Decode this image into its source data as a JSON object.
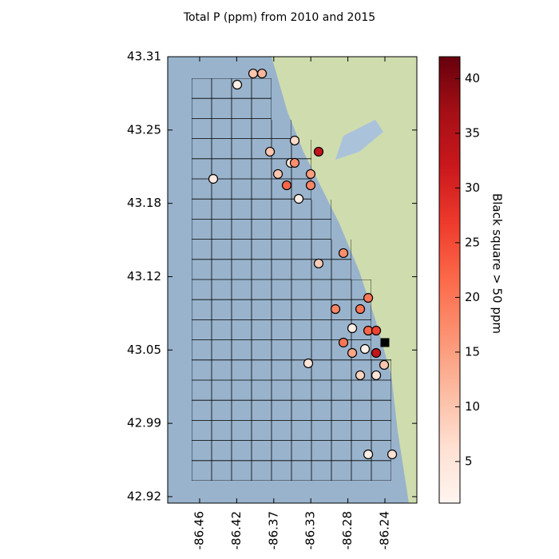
{
  "chart_data": {
    "type": "scatter",
    "title": "Total P (ppm) from 2010 and 2015",
    "colorbar_label": "Black square > 50 ppm",
    "x": [
      -86.3975,
      -86.3868,
      -86.4169,
      -86.318,
      -86.3771,
      -86.3471,
      -86.3519,
      -86.3471,
      -86.3674,
      -86.3277,
      -86.3568,
      -86.3277,
      -86.446,
      -86.3422,
      -86.2879,
      -86.318,
      -86.2578,
      -86.2976,
      -86.2675,
      -86.2772,
      -86.2578,
      -86.2481,
      -86.2879,
      -86.2617,
      -86.2772,
      -86.2481,
      -86.3306,
      -86.2384,
      -86.2675,
      -86.2481,
      -86.2578,
      -86.2287
    ],
    "y": [
      43.2976,
      43.2976,
      43.2877,
      43.2283,
      43.2283,
      43.2382,
      43.2184,
      43.2184,
      43.2085,
      43.2085,
      43.1985,
      43.1985,
      43.2042,
      43.1865,
      43.1384,
      43.1292,
      43.0987,
      43.0888,
      43.0888,
      43.0718,
      43.0697,
      43.0697,
      43.0591,
      43.0534,
      43.0499,
      43.0499,
      43.0407,
      43.0393,
      43.0301,
      43.0301,
      42.96,
      42.96
    ],
    "values": [
      10,
      12,
      3,
      33,
      10,
      7,
      4,
      17,
      10,
      15,
      22,
      18,
      4,
      3,
      17,
      9,
      20,
      18,
      20,
      3,
      22,
      26,
      20,
      2,
      14,
      33,
      5,
      10,
      8,
      5,
      3,
      6
    ],
    "highlight": {
      "x": [
        -86.2375
      ],
      "y": [
        43.0591
      ],
      "color": "#000000"
    },
    "colormap": [
      "#fff5f0",
      "#fee0d2",
      "#fcbba1",
      "#fc9272",
      "#fb6a4a",
      "#ef3b2c",
      "#cb181d",
      "#a50f15",
      "#67000d"
    ],
    "clim": [
      1.2,
      42
    ],
    "cticks": [
      5,
      10,
      15,
      20,
      25,
      30,
      35,
      40
    ],
    "xlim": [
      -86.5013,
      -86.1987
    ],
    "ylim": [
      42.9168,
      43.3125
    ],
    "xticks": [
      {
        "value": -86.4625,
        "label": "-86.46"
      },
      {
        "value": -86.4175,
        "label": "-86.42"
      },
      {
        "value": -86.3725,
        "label": "-86.37"
      },
      {
        "value": -86.3275,
        "label": "-86.33"
      },
      {
        "value": -86.2825,
        "label": "-86.28"
      },
      {
        "value": -86.2375,
        "label": "-86.24"
      }
    ],
    "yticks": [
      {
        "value": 43.3125,
        "label": "43.31"
      },
      {
        "value": 43.2475,
        "label": "43.25"
      },
      {
        "value": 43.1825,
        "label": "43.18"
      },
      {
        "value": 43.1175,
        "label": "43.12"
      },
      {
        "value": 43.0525,
        "label": "43.05"
      },
      {
        "value": 42.9875,
        "label": "42.99"
      },
      {
        "value": 42.9225,
        "label": "42.92"
      }
    ]
  }
}
